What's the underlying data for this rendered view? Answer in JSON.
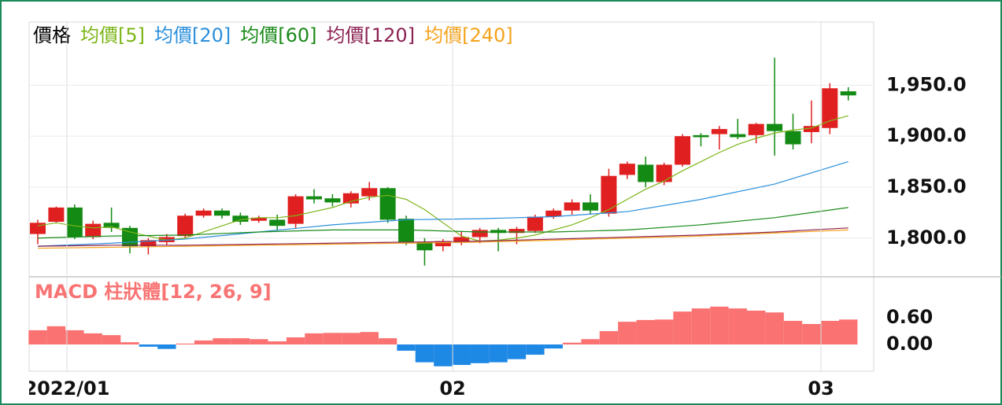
{
  "chart_data": [
    {
      "type": "candlestick",
      "xlim": [
        -0.47,
        45.38
      ],
      "ylim": [
        1762,
        2012
      ],
      "yticks": [
        {
          "value": 1800,
          "label": "1,800.0"
        },
        {
          "value": 1850,
          "label": "1,850.0"
        },
        {
          "value": 1900,
          "label": "1,900.0"
        },
        {
          "value": 1950,
          "label": "1,950.0"
        }
      ],
      "grid": true,
      "up_color": "#e02020",
      "down_color": "#138a13",
      "series": [
        {
          "name": "價格",
          "color": "#000000",
          "open": [
            1804,
            1816,
            1830,
            1801,
            1815,
            1810,
            1792,
            1796,
            1802,
            1822,
            1827,
            1822,
            1817,
            1818,
            1814,
            1841,
            1839,
            1834,
            1841,
            1849,
            1819,
            1796,
            1792,
            1796,
            1801,
            1808,
            1805,
            1807,
            1821,
            1827,
            1835,
            1824,
            1862,
            1872,
            1855,
            1872,
            1901,
            1902,
            1902,
            1901,
            1912,
            1905,
            1904,
            1908,
            1944
          ],
          "high": [
            1818,
            1831,
            1833,
            1817,
            1830,
            1812,
            1800,
            1804,
            1824,
            1829,
            1829,
            1825,
            1822,
            1823,
            1843,
            1848,
            1843,
            1846,
            1855,
            1850,
            1822,
            1800,
            1799,
            1806,
            1810,
            1810,
            1811,
            1823,
            1829,
            1838,
            1843,
            1868,
            1875,
            1880,
            1874,
            1902,
            1903,
            1910,
            1917,
            1913,
            1977,
            1922,
            1935,
            1952,
            1948
          ],
          "low": [
            1794,
            1815,
            1799,
            1799,
            1806,
            1785,
            1784,
            1793,
            1800,
            1820,
            1819,
            1813,
            1815,
            1808,
            1810,
            1834,
            1831,
            1830,
            1837,
            1815,
            1793,
            1773,
            1787,
            1793,
            1795,
            1787,
            1794,
            1805,
            1819,
            1823,
            1823,
            1821,
            1858,
            1850,
            1852,
            1870,
            1890,
            1887,
            1897,
            1893,
            1881,
            1887,
            1893,
            1902,
            1935
          ],
          "close": [
            1815,
            1830,
            1801,
            1814,
            1810,
            1792,
            1798,
            1801,
            1822,
            1827,
            1822,
            1816,
            1820,
            1812,
            1841,
            1838,
            1835,
            1844,
            1849,
            1818,
            1796,
            1788,
            1797,
            1801,
            1808,
            1805,
            1809,
            1821,
            1827,
            1835,
            1827,
            1861,
            1873,
            1855,
            1872,
            1900,
            1899,
            1907,
            1899,
            1912,
            1905,
            1892,
            1910,
            1947,
            1940
          ]
        },
        {
          "name": "均價[5]",
          "color": "#7cb518",
          "values": [
            1812,
            1815,
            1812,
            1810,
            1811,
            1806,
            1802,
            1798,
            1800,
            1806,
            1812,
            1818,
            1820,
            1820,
            1822,
            1826,
            1830,
            1836,
            1840,
            1842,
            1838,
            1828,
            1815,
            1802,
            1797,
            1798,
            1800,
            1803,
            1808,
            1813,
            1820,
            1828,
            1838,
            1848,
            1856,
            1866,
            1875,
            1884,
            1892,
            1898,
            1903,
            1906,
            1908,
            1915,
            1920
          ]
        },
        {
          "name": "均價[20]",
          "color": "#2a8fdc",
          "x": [
            0,
            4,
            8,
            12,
            16,
            20,
            24,
            28,
            32,
            36,
            40,
            44
          ],
          "values": [
            1792,
            1795,
            1799,
            1806,
            1813,
            1818,
            1819,
            1821,
            1826,
            1838,
            1853,
            1875
          ]
        },
        {
          "name": "均價[60]",
          "color": "#1a8a1a",
          "x": [
            0,
            4,
            8,
            12,
            16,
            20,
            24,
            28,
            32,
            36,
            40,
            44
          ],
          "values": [
            1800,
            1802,
            1803,
            1806,
            1808,
            1808,
            1806,
            1806,
            1808,
            1813,
            1820,
            1830
          ]
        },
        {
          "name": "均價[120]",
          "color": "#8b2252",
          "x": [
            0,
            4,
            8,
            12,
            16,
            20,
            24,
            28,
            32,
            36,
            40,
            44
          ],
          "values": [
            1792,
            1793,
            1793,
            1794,
            1795,
            1796,
            1797,
            1799,
            1801,
            1803,
            1806,
            1810
          ]
        },
        {
          "name": "均價[240]",
          "color": "#f5a21b",
          "x": [
            0,
            4,
            8,
            12,
            16,
            20,
            24,
            28,
            32,
            36,
            40,
            44
          ],
          "values": [
            1790,
            1791,
            1792,
            1793,
            1794,
            1795,
            1796,
            1798,
            1800,
            1802,
            1805,
            1808
          ]
        }
      ]
    },
    {
      "type": "bar",
      "title": "MACD 柱狀體[12, 26, 9]",
      "xlim": [
        -0.47,
        45.38
      ],
      "xticks": [
        {
          "value": 1.58,
          "label": "2022/01"
        },
        {
          "value": 22.52,
          "label": "02"
        },
        {
          "value": 42.52,
          "label": "03"
        }
      ],
      "ylim": [
        -0.6,
        1.52
      ],
      "yticks": [
        {
          "value": 0,
          "label": "0.00"
        },
        {
          "value": 0.6,
          "label": "0.60"
        }
      ],
      "up_color": "#fa7272",
      "down_color": "#1e88e5",
      "values": [
        0.32,
        0.41,
        0.32,
        0.25,
        0.21,
        0.05,
        -0.05,
        -0.1,
        0.02,
        0.09,
        0.14,
        0.14,
        0.12,
        0.07,
        0.16,
        0.25,
        0.26,
        0.26,
        0.28,
        0.14,
        -0.14,
        -0.4,
        -0.49,
        -0.46,
        -0.42,
        -0.4,
        -0.33,
        -0.23,
        -0.09,
        0.04,
        0.12,
        0.3,
        0.51,
        0.55,
        0.56,
        0.74,
        0.81,
        0.85,
        0.81,
        0.76,
        0.72,
        0.53,
        0.46,
        0.53,
        0.56
      ]
    }
  ]
}
